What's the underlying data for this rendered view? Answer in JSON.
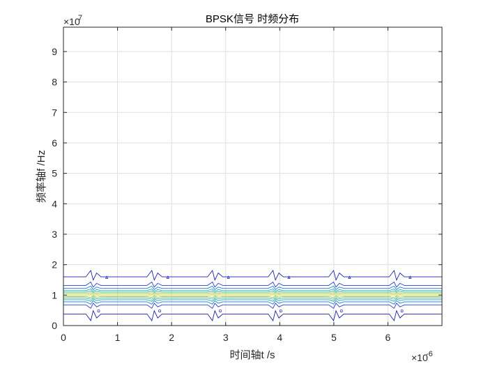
{
  "chart_data": {
    "type": "contour",
    "title": "BPSK信号 时频分布",
    "xlabel": "时间轴t /s",
    "ylabel": "频率轴f /Hz",
    "x_exponent_label": "×10",
    "x_exponent_power": "-6",
    "y_exponent_label": "×10",
    "y_exponent_power": "7",
    "xlim": [
      0,
      7
    ],
    "ylim": [
      0,
      9.8
    ],
    "x_scale": 1e-06,
    "y_scale": 10000000.0,
    "xticks": [
      0,
      1,
      2,
      3,
      4,
      5,
      6
    ],
    "xtick_labels": [
      "0",
      "1",
      "2",
      "3",
      "4",
      "5",
      "6"
    ],
    "yticks": [
      0,
      1,
      2,
      3,
      4,
      5,
      6,
      7,
      8,
      9
    ],
    "ytick_labels": [
      "0",
      "1",
      "2",
      "3",
      "4",
      "5",
      "6",
      "7",
      "8",
      "9"
    ],
    "grid": true,
    "carrier_frequency_1e7": 1.0,
    "phase_change_times_1e-6": [
      0.55,
      1.68,
      2.8,
      3.92,
      5.04,
      6.16
    ],
    "contour_levels": [
      {
        "center": 1.6,
        "color": "#1f1fae"
      },
      {
        "center": 1.32,
        "color": "#2a3fd6"
      },
      {
        "center": 1.22,
        "color": "#1f78c8"
      },
      {
        "center": 1.15,
        "color": "#21a6b4"
      },
      {
        "center": 1.1,
        "color": "#3cbc8d"
      },
      {
        "center": 1.05,
        "color": "#8ec840"
      },
      {
        "center": 1.0,
        "color": "#e8d51a"
      },
      {
        "center": 0.95,
        "color": "#8ec840"
      },
      {
        "center": 0.9,
        "color": "#3cbc8d"
      },
      {
        "center": 0.85,
        "color": "#21a6b4"
      },
      {
        "center": 0.78,
        "color": "#1f78c8"
      },
      {
        "center": 0.68,
        "color": "#2a3fd6"
      },
      {
        "center": 0.38,
        "color": "#1f1fae"
      }
    ],
    "colors": {
      "axis": "#262626",
      "grid": "#dfdfdf",
      "low": "#1f1fae",
      "high": "#e8d51a"
    }
  }
}
